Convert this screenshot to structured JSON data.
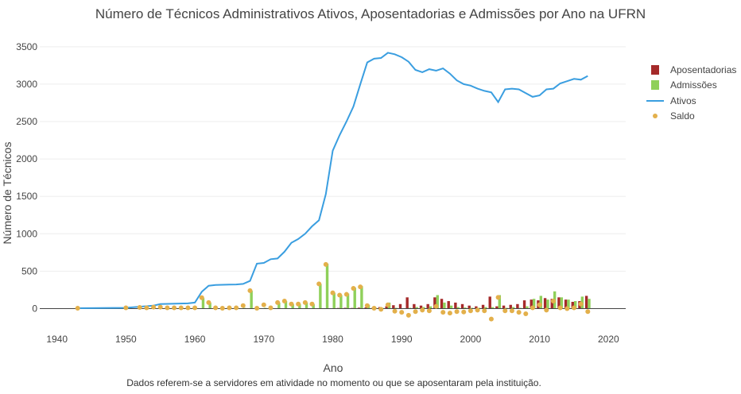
{
  "chart_data": {
    "type": "bar+line+scatter",
    "title": "Número de Técnicos Administrativos Ativos, Aposentadorias e Admissões por Ano na UFRN",
    "xlabel": "Ano",
    "ylabel": "Número de Técnicos",
    "note": "Dados referem-se a servidores em atividade no momento ou que se aposentaram pela instituição.",
    "xlim": [
      1937.5,
      2022.5
    ],
    "ylim": [
      -250,
      3700
    ],
    "x_ticks": [
      1940,
      1950,
      1960,
      1970,
      1980,
      1990,
      2000,
      2010,
      2020
    ],
    "y_ticks": [
      0,
      500,
      1000,
      1500,
      2000,
      2500,
      3000,
      3500
    ],
    "grid": true,
    "legend_position": "right",
    "series": [
      {
        "name": "Aposentadorias",
        "kind": "bar",
        "color": "#a52a2a",
        "x": [
          1976,
          1980,
          1981,
          1982,
          1983,
          1984,
          1985,
          1986,
          1987,
          1988,
          1989,
          1990,
          1991,
          1992,
          1993,
          1994,
          1995,
          1996,
          1997,
          1998,
          1999,
          2000,
          2001,
          2002,
          2003,
          2004,
          2005,
          2006,
          2007,
          2008,
          2009,
          2010,
          2011,
          2012,
          2013,
          2014,
          2015,
          2016,
          2017
        ],
        "values": [
          5,
          5,
          8,
          10,
          8,
          12,
          15,
          10,
          20,
          30,
          45,
          60,
          150,
          60,
          40,
          60,
          150,
          130,
          100,
          80,
          60,
          40,
          30,
          50,
          160,
          30,
          40,
          50,
          60,
          110,
          120,
          110,
          140,
          130,
          150,
          120,
          90,
          100,
          170
        ]
      },
      {
        "name": "Admissões",
        "kind": "bar",
        "color": "#8fd05a",
        "x": [
          1961,
          1962,
          1965,
          1966,
          1967,
          1968,
          1969,
          1970,
          1971,
          1972,
          1973,
          1974,
          1975,
          1976,
          1977,
          1978,
          1979,
          1980,
          1981,
          1982,
          1983,
          1984,
          1985,
          1986,
          1987,
          1988,
          1989,
          1991,
          1992,
          1993,
          1994,
          1995,
          1996,
          1997,
          1998,
          1999,
          2000,
          2001,
          2002,
          2003,
          2004,
          2005,
          2006,
          2007,
          2008,
          2009,
          2010,
          2011,
          2012,
          2013,
          2014,
          2015,
          2016,
          2017
        ],
        "values": [
          140,
          80,
          10,
          10,
          10,
          240,
          5,
          10,
          5,
          80,
          100,
          60,
          60,
          80,
          60,
          330,
          600,
          210,
          180,
          200,
          280,
          300,
          50,
          10,
          10,
          80,
          10,
          10,
          20,
          20,
          30,
          180,
          80,
          40,
          20,
          15,
          10,
          10,
          20,
          20,
          180,
          10,
          20,
          10,
          30,
          130,
          170,
          120,
          230,
          150,
          120,
          100,
          160,
          130
        ]
      },
      {
        "name": "Ativos",
        "kind": "line",
        "color": "#3a9ee0",
        "x": [
          1943,
          1950,
          1954,
          1955,
          1959,
          1960,
          1961,
          1962,
          1963,
          1964,
          1965,
          1966,
          1967,
          1968,
          1969,
          1970,
          1971,
          1972,
          1973,
          1974,
          1975,
          1976,
          1977,
          1978,
          1979,
          1980,
          1981,
          1982,
          1983,
          1984,
          1985,
          1986,
          1987,
          1988,
          1989,
          1990,
          1991,
          1992,
          1993,
          1994,
          1995,
          1996,
          1997,
          1998,
          1999,
          2000,
          2001,
          2002,
          2003,
          2004,
          2005,
          2006,
          2007,
          2008,
          2009,
          2010,
          2011,
          2012,
          2013,
          2014,
          2015,
          2016,
          2017
        ],
        "values": [
          5,
          10,
          40,
          60,
          70,
          80,
          225,
          305,
          315,
          318,
          320,
          322,
          330,
          370,
          600,
          610,
          660,
          670,
          760,
          880,
          930,
          1000,
          1100,
          1180,
          1530,
          2110,
          2320,
          2500,
          2700,
          3000,
          3290,
          3340,
          3350,
          3420,
          3400,
          3360,
          3300,
          3190,
          3160,
          3200,
          3180,
          3210,
          3140,
          3050,
          3000,
          2980,
          2940,
          2910,
          2890,
          2760,
          2930,
          2940,
          2930,
          2880,
          2830,
          2850,
          2930,
          2940,
          3010,
          3040,
          3070,
          3060,
          3110
        ]
      },
      {
        "name": "Saldo",
        "kind": "scatter",
        "color": "#e3b04b",
        "x": [
          1943,
          1950,
          1952,
          1953,
          1954,
          1955,
          1956,
          1957,
          1958,
          1959,
          1960,
          1961,
          1962,
          1963,
          1964,
          1965,
          1966,
          1967,
          1968,
          1969,
          1970,
          1971,
          1972,
          1973,
          1974,
          1975,
          1976,
          1977,
          1978,
          1979,
          1980,
          1981,
          1982,
          1983,
          1984,
          1985,
          1986,
          1987,
          1988,
          1989,
          1990,
          1991,
          1992,
          1993,
          1994,
          1995,
          1996,
          1997,
          1998,
          1999,
          2000,
          2001,
          2002,
          2003,
          2004,
          2005,
          2006,
          2007,
          2008,
          2009,
          2010,
          2011,
          2012,
          2013,
          2014,
          2015,
          2016,
          2017
        ],
        "values": [
          5,
          10,
          15,
          10,
          20,
          20,
          10,
          10,
          10,
          10,
          10,
          145,
          80,
          10,
          5,
          10,
          10,
          40,
          240,
          5,
          50,
          10,
          80,
          100,
          60,
          60,
          80,
          60,
          330,
          590,
          210,
          180,
          190,
          270,
          290,
          40,
          5,
          -10,
          50,
          -35,
          -50,
          -90,
          -40,
          -20,
          -30,
          30,
          -50,
          -60,
          -40,
          -45,
          -30,
          -20,
          -30,
          -140,
          150,
          -30,
          -30,
          -50,
          -70,
          10,
          50,
          -20,
          100,
          10,
          0,
          10,
          60,
          -40
        ]
      }
    ]
  }
}
